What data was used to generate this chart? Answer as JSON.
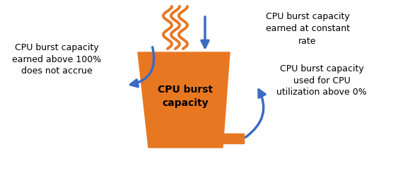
{
  "bucket_color": "#E87722",
  "arrow_color": "#3B6BC4",
  "wavy_color": "#E87722",
  "text_color": "#000000",
  "bg_color": "#FFFFFF",
  "bucket_label": "CPU burst\ncapacity",
  "overflow_text": "CPU burst capacity\nearned above 100%\ndoes not accrue",
  "inflow_text": "CPU burst capacity\nearned at constant\nrate",
  "drain_text": "CPU burst capacity\nused for CPU\nutilization above 0%",
  "figsize": [
    5.63,
    2.69
  ],
  "dpi": 100
}
